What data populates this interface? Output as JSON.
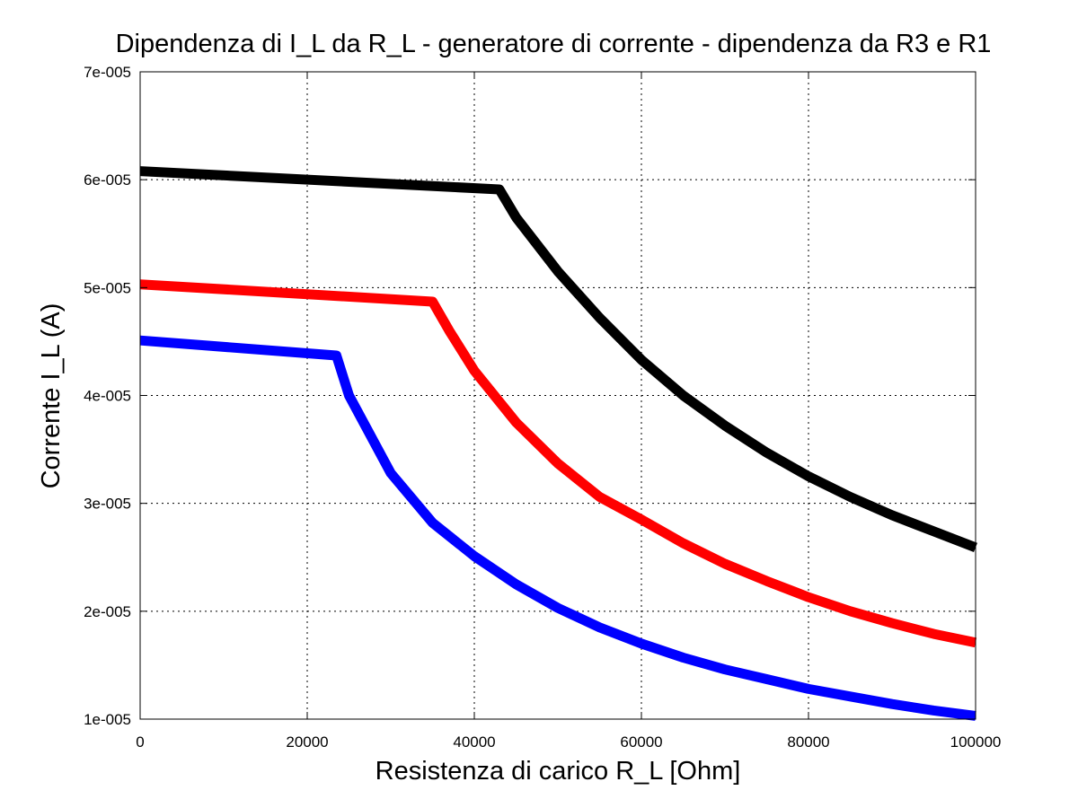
{
  "chart_data": {
    "type": "line",
    "title": "Dipendenza di I_L da R_L - generatore di corrente - dipendenza da R3 e R1",
    "xlabel": "Resistenza di carico R_L [Ohm]",
    "ylabel": "Corrente I_L (A)",
    "xlim": [
      0,
      100000
    ],
    "ylim": [
      1e-05,
      7e-05
    ],
    "xticks": [
      0,
      20000,
      40000,
      60000,
      80000,
      100000
    ],
    "xtick_labels": [
      "0",
      "20000",
      "40000",
      "60000",
      "80000",
      "100000"
    ],
    "yticks": [
      1e-05,
      2e-05,
      3e-05,
      4e-05,
      5e-05,
      6e-05,
      7e-05
    ],
    "ytick_labels": [
      "1e-005",
      "2e-005",
      "3e-005",
      "4e-005",
      "5e-005",
      "6e-005",
      "7e-005"
    ],
    "grid": true,
    "legend": "none",
    "series": [
      {
        "color": "#000000",
        "points": [
          [
            0,
            6.08e-05
          ],
          [
            43000,
            5.91e-05
          ],
          [
            45000,
            5.65e-05
          ],
          [
            50000,
            5.15e-05
          ],
          [
            55000,
            4.72e-05
          ],
          [
            60000,
            4.33e-05
          ],
          [
            65000,
            4e-05
          ],
          [
            70000,
            3.72e-05
          ],
          [
            75000,
            3.47e-05
          ],
          [
            80000,
            3.25e-05
          ],
          [
            85000,
            3.06e-05
          ],
          [
            90000,
            2.89e-05
          ],
          [
            95000,
            2.74e-05
          ],
          [
            100000,
            2.59e-05
          ]
        ]
      },
      {
        "color": "#ff0000",
        "points": [
          [
            0,
            5.03e-05
          ],
          [
            35000,
            4.87e-05
          ],
          [
            37000,
            4.6e-05
          ],
          [
            40000,
            4.23e-05
          ],
          [
            45000,
            3.75e-05
          ],
          [
            50000,
            3.37e-05
          ],
          [
            55000,
            3.06e-05
          ],
          [
            60000,
            2.85e-05
          ],
          [
            65000,
            2.63e-05
          ],
          [
            70000,
            2.44e-05
          ],
          [
            75000,
            2.28e-05
          ],
          [
            80000,
            2.13e-05
          ],
          [
            85000,
            2e-05
          ],
          [
            90000,
            1.89e-05
          ],
          [
            95000,
            1.79e-05
          ],
          [
            100000,
            1.71e-05
          ]
        ]
      },
      {
        "color": "#0000ff",
        "points": [
          [
            0,
            4.51e-05
          ],
          [
            23500,
            4.37e-05
          ],
          [
            25000,
            4e-05
          ],
          [
            30000,
            3.28e-05
          ],
          [
            35000,
            2.82e-05
          ],
          [
            40000,
            2.51e-05
          ],
          [
            45000,
            2.25e-05
          ],
          [
            50000,
            2.03e-05
          ],
          [
            55000,
            1.85e-05
          ],
          [
            60000,
            1.7e-05
          ],
          [
            65000,
            1.57e-05
          ],
          [
            70000,
            1.46e-05
          ],
          [
            75000,
            1.37e-05
          ],
          [
            80000,
            1.28e-05
          ],
          [
            85000,
            1.21e-05
          ],
          [
            90000,
            1.14e-05
          ],
          [
            95000,
            1.08e-05
          ],
          [
            100000,
            1.03e-05
          ]
        ]
      }
    ]
  }
}
